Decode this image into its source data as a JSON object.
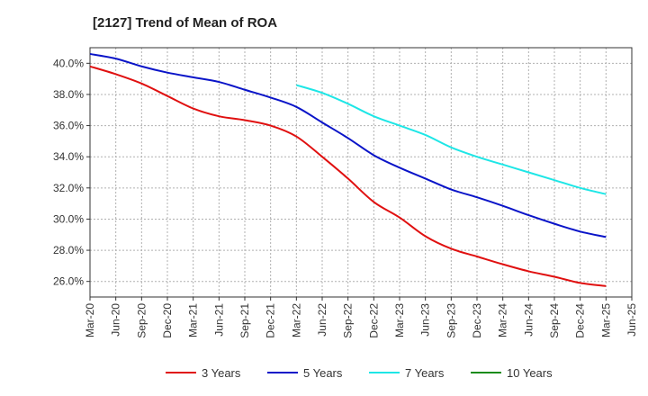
{
  "chart_data": {
    "type": "line",
    "title": "[2127]  Trend of Mean of ROA",
    "xlabel": "",
    "ylabel": "",
    "ylim": [
      25.0,
      41.0
    ],
    "yticks": [
      26,
      28,
      30,
      32,
      34,
      36,
      38,
      40
    ],
    "y_tick_format": "{v}.0%",
    "y_tick_labels": [
      "26.0%",
      "28.0%",
      "30.0%",
      "32.0%",
      "34.0%",
      "36.0%",
      "38.0%",
      "40.0%"
    ],
    "grid": true,
    "legend_position": "bottom",
    "x_tick_labels": [
      "Mar-20",
      "Jun-20",
      "Sep-20",
      "Dec-20",
      "Mar-21",
      "Jun-21",
      "Sep-21",
      "Dec-21",
      "Mar-22",
      "Jun-22",
      "Sep-22",
      "Dec-22",
      "Mar-23",
      "Jun-23",
      "Sep-23",
      "Dec-23",
      "Mar-24",
      "Jun-24",
      "Sep-24",
      "Dec-24",
      "Mar-25",
      "Jun-25"
    ],
    "series": [
      {
        "name": "3 Years",
        "color": "#e01010",
        "start_index": 0,
        "values": [
          39.8,
          39.3,
          38.7,
          37.9,
          37.1,
          36.6,
          36.35,
          36.0,
          35.3,
          34.0,
          32.6,
          31.1,
          30.1,
          28.9,
          28.1,
          27.6,
          27.1,
          26.65,
          26.3,
          25.9,
          25.7
        ]
      },
      {
        "name": "5 Years",
        "color": "#0a14c8",
        "start_index": 0,
        "values": [
          40.6,
          40.3,
          39.8,
          39.4,
          39.1,
          38.8,
          38.3,
          37.8,
          37.2,
          36.2,
          35.2,
          34.1,
          33.3,
          32.6,
          31.9,
          31.4,
          30.85,
          30.25,
          29.7,
          29.2,
          28.85
        ]
      },
      {
        "name": "7 Years",
        "color": "#1ee6e6",
        "start_index": 8,
        "values": [
          38.6,
          38.1,
          37.4,
          36.6,
          36.0,
          35.4,
          34.6,
          34.0,
          33.5,
          33.0,
          32.5,
          32.0,
          31.6
        ]
      },
      {
        "name": "10 Years",
        "color": "#1a8c1a",
        "start_index": 0,
        "values": []
      }
    ]
  }
}
